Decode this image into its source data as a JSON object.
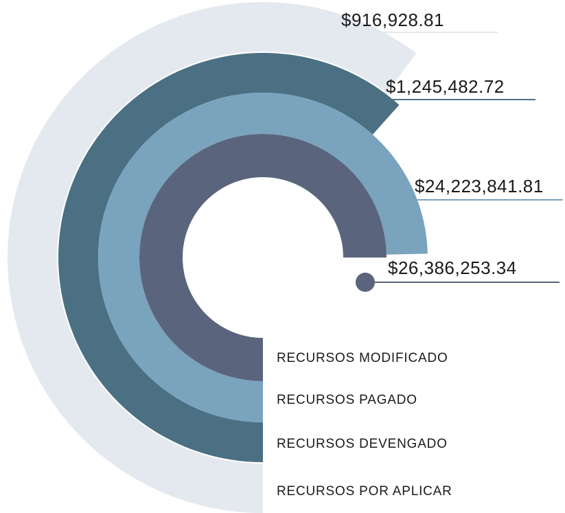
{
  "chart_data": {
    "type": "radial-bar",
    "categories": [
      "RECURSOS POR APLICAR",
      "RECURSOS DEVENGADO",
      "RECURSOS PAGADO",
      "RECURSOS MODIFICADO"
    ],
    "values": [
      916928.81,
      1245482.72,
      24223841.81,
      26386253.34
    ],
    "value_labels": [
      "$916,928.81",
      "$1,245,482.72",
      "$24,223,841.81",
      "$26,386,253.34"
    ],
    "colors": [
      "#e4e9ef",
      "#4b7083",
      "#7aa3bd",
      "#5a657d"
    ],
    "log_scale": true
  }
}
